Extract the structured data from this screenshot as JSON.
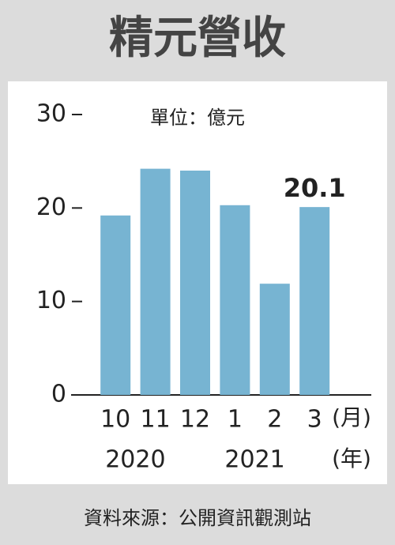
{
  "chart_data": {
    "type": "bar",
    "title": "精元營收",
    "subtitle": "單位：億元",
    "categories": [
      "10",
      "11",
      "12",
      "1",
      "2",
      "3"
    ],
    "values": [
      19.2,
      24.2,
      24.0,
      20.3,
      11.9,
      20.1
    ],
    "color": "#77b4d2",
    "ylim": [
      0,
      30
    ],
    "yticks": [
      0,
      10,
      20,
      30
    ],
    "x_label": "(月)",
    "year_label": "(年)",
    "years": [
      "2020",
      "2021"
    ],
    "labeled_index": 5,
    "source": "資料來源：公開資訊觀測站"
  }
}
